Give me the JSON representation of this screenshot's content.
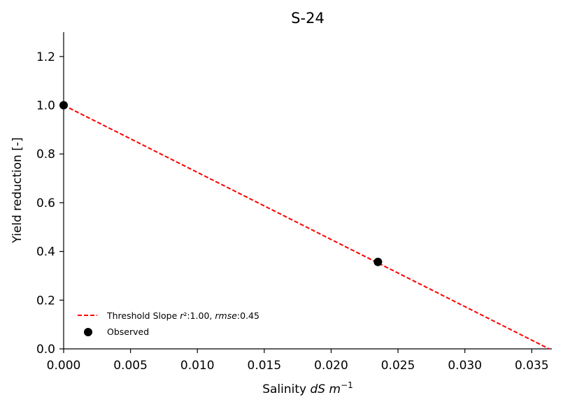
{
  "chart_data": {
    "type": "line",
    "title": "S-24",
    "xlabel": {
      "prefix": "Salinity ",
      "italic": "dS m",
      "sup": "−1"
    },
    "ylabel": "Yield reduction [-]",
    "xlim": [
      0.0,
      0.0365
    ],
    "ylim": [
      0.0,
      1.3
    ],
    "xticks": [
      "0.000",
      "0.005",
      "0.010",
      "0.015",
      "0.020",
      "0.025",
      "0.030",
      "0.035"
    ],
    "yticks": [
      "0.0",
      "0.2",
      "0.4",
      "0.6",
      "0.8",
      "1.0",
      "1.2"
    ],
    "grid": false,
    "legend_position": "lower-left",
    "series": [
      {
        "name": "Threshold Slope r²:1.00, rmse:0.45",
        "style": "dashed",
        "color": "#ff0000",
        "x": [
          0.0,
          0.0363
        ],
        "y": [
          1.0,
          0.0
        ]
      },
      {
        "name": "Observed",
        "style": "scatter",
        "color": "#000000",
        "x": [
          0.0,
          0.0235
        ],
        "y": [
          1.0,
          0.357
        ]
      }
    ],
    "legend": [
      {
        "label_prefix": "Threshold Slope ",
        "italic1": "r",
        "mid1": "²:1.00, ",
        "italic2": "rmse",
        "mid2": ":0.45"
      },
      {
        "label": "Observed"
      }
    ]
  }
}
